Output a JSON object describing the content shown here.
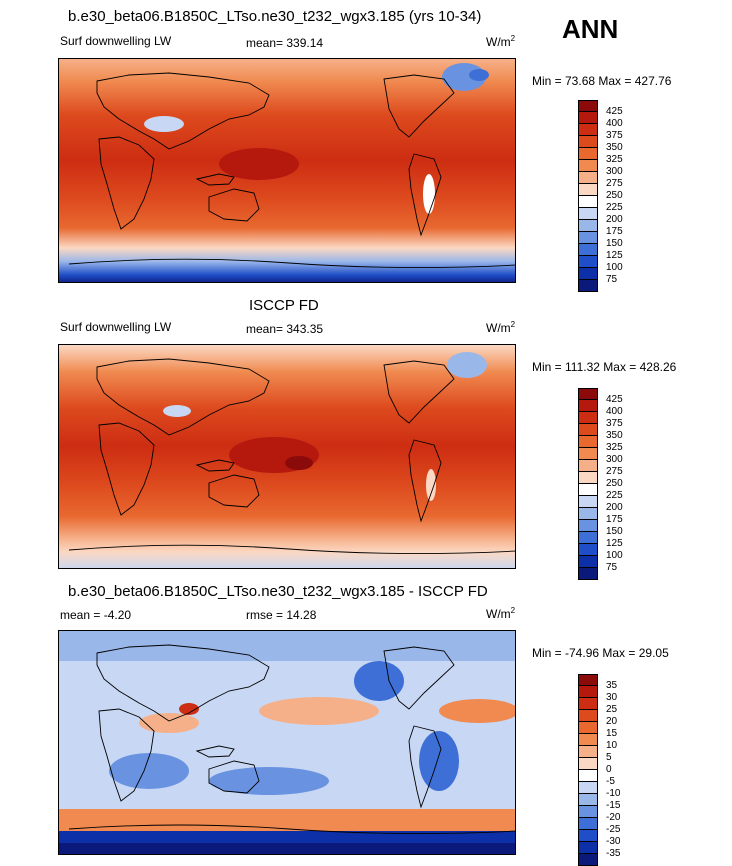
{
  "season": "ANN",
  "panels": [
    {
      "title": "b.e30_beta06.B1850C_LTso.ne30_t232_wgx3.185 (yrs 10-34)",
      "left_label": "Surf downwelling LW",
      "center_label": "mean= 339.14",
      "units_base": "W/m",
      "units_exp": "2",
      "minmax": "Min =  73.68 Max = 427.76",
      "colorbar": {
        "labels": [
          "425",
          "400",
          "375",
          "350",
          "325",
          "300",
          "275",
          "250",
          "225",
          "200",
          "175",
          "150",
          "125",
          "100",
          "75"
        ],
        "colors": [
          "#8b0a0a",
          "#b5180d",
          "#cd2d12",
          "#dd4a1e",
          "#e8682f",
          "#f08a50",
          "#f6b089",
          "#fbd8c3",
          "#ffffff",
          "#c8d7f3",
          "#9ab7ea",
          "#6993e0",
          "#3e6fd6",
          "#1f4ec8",
          "#0d30a8",
          "#0b1a7a"
        ]
      }
    },
    {
      "title": "ISCCP FD",
      "left_label": "Surf downwelling LW",
      "center_label": "mean= 343.35",
      "units_base": "W/m",
      "units_exp": "2",
      "minmax": "Min = 111.32 Max = 428.26",
      "colorbar": {
        "labels": [
          "425",
          "400",
          "375",
          "350",
          "325",
          "300",
          "275",
          "250",
          "225",
          "200",
          "175",
          "150",
          "125",
          "100",
          "75"
        ],
        "colors": [
          "#8b0a0a",
          "#b5180d",
          "#cd2d12",
          "#dd4a1e",
          "#e8682f",
          "#f08a50",
          "#f6b089",
          "#fbd8c3",
          "#ffffff",
          "#c8d7f3",
          "#9ab7ea",
          "#6993e0",
          "#3e6fd6",
          "#1f4ec8",
          "#0d30a8",
          "#0b1a7a"
        ]
      }
    },
    {
      "title": "b.e30_beta06.B1850C_LTso.ne30_t232_wgx3.185 - ISCCP FD",
      "left_label": "mean =  -4.20",
      "center_label": "rmse =  14.28",
      "units_base": "W/m",
      "units_exp": "2",
      "minmax": "Min = -74.96 Max =  29.05",
      "colorbar": {
        "labels": [
          "35",
          "30",
          "25",
          "20",
          "15",
          "10",
          "5",
          "0",
          "-5",
          "-10",
          "-15",
          "-20",
          "-25",
          "-30",
          "-35"
        ],
        "colors": [
          "#8b0a0a",
          "#b5180d",
          "#cd2d12",
          "#dd4a1e",
          "#e8682f",
          "#f08a50",
          "#f6b089",
          "#fbd8c3",
          "#ffffff",
          "#c8d7f3",
          "#9ab7ea",
          "#6993e0",
          "#3e6fd6",
          "#1f4ec8",
          "#0d30a8",
          "#0b1a7a"
        ]
      }
    }
  ]
}
